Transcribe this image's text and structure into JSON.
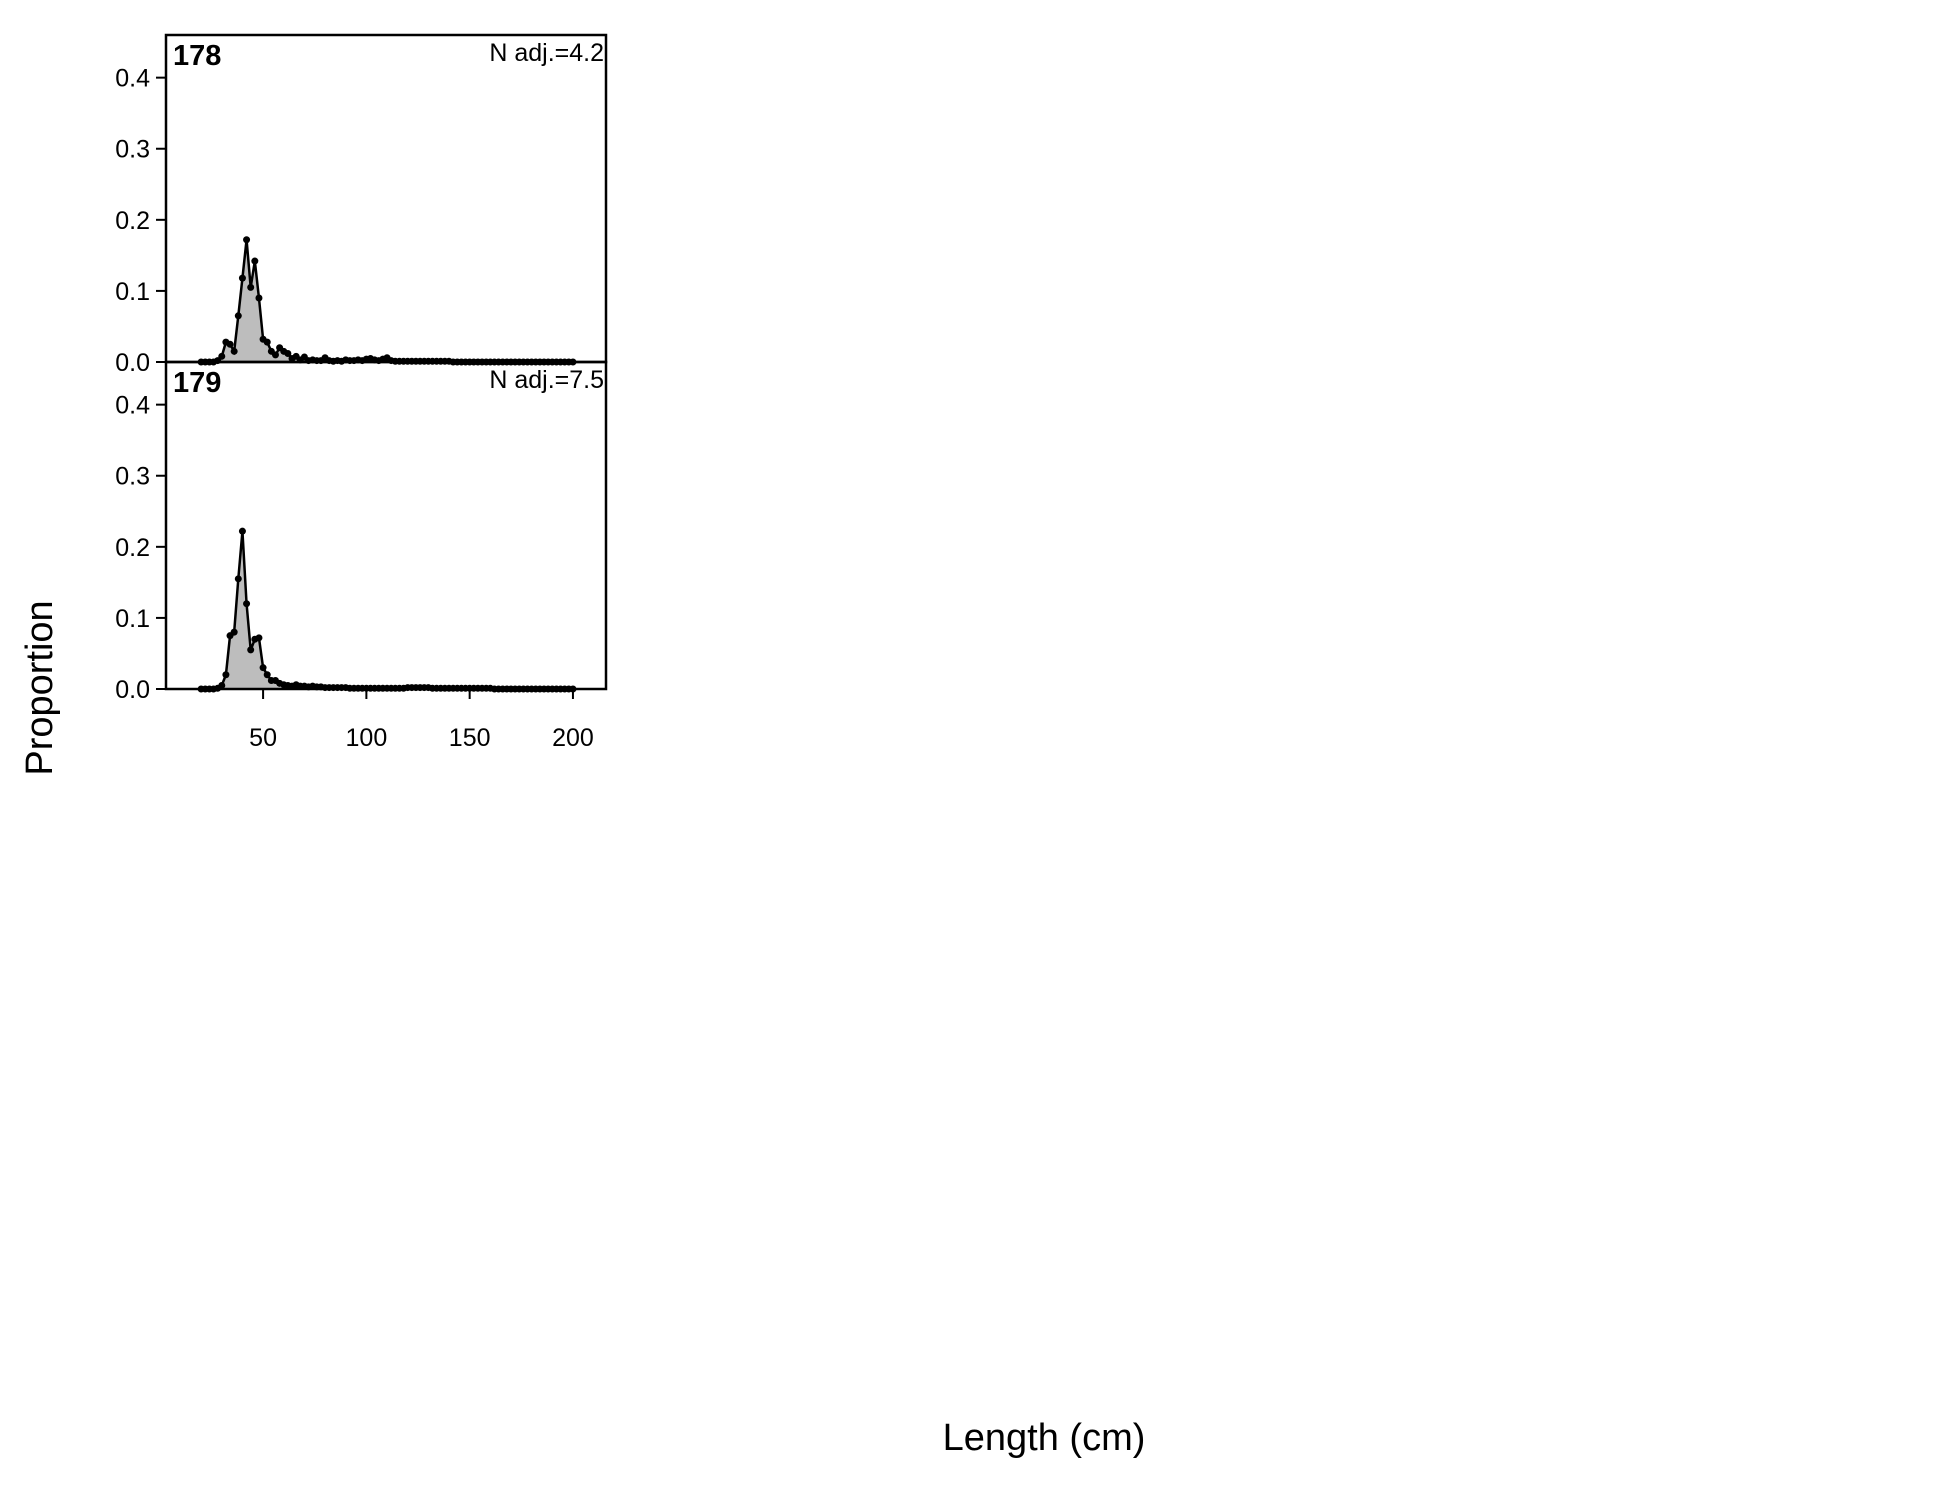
{
  "ylabel": "Proportion",
  "xlabel": "Length (cm)",
  "chart_data": [
    {
      "type": "area",
      "title": "178",
      "annotation": "N adj.=4.2",
      "color": "#bdbdbd",
      "x": [
        20,
        22,
        24,
        26,
        28,
        30,
        32,
        34,
        36,
        38,
        40,
        42,
        44,
        46,
        48,
        50,
        52,
        54,
        56,
        58,
        60,
        62,
        64,
        66,
        68,
        70,
        72,
        74,
        76,
        78,
        80,
        82,
        84,
        86,
        88,
        90,
        92,
        94,
        96,
        98,
        100,
        102,
        104,
        106,
        108,
        110,
        112,
        114,
        116,
        118,
        120,
        122,
        124,
        126,
        128,
        130,
        132,
        134,
        136,
        138,
        140,
        142,
        144,
        146,
        148,
        150,
        152,
        154,
        156,
        158,
        160,
        162,
        164,
        166,
        168,
        170,
        172,
        174,
        176,
        178,
        180,
        182,
        184,
        186,
        188,
        190,
        192,
        194,
        196,
        198,
        200
      ],
      "values": [
        0,
        0,
        0,
        0,
        0.002,
        0.008,
        0.028,
        0.025,
        0.015,
        0.065,
        0.118,
        0.172,
        0.105,
        0.142,
        0.09,
        0.032,
        0.028,
        0.015,
        0.01,
        0.02,
        0.015,
        0.012,
        0.005,
        0.008,
        0.003,
        0.007,
        0.002,
        0.003,
        0.002,
        0.002,
        0.006,
        0.002,
        0.001,
        0.002,
        0.001,
        0.003,
        0.002,
        0.002,
        0.003,
        0.002,
        0.004,
        0.005,
        0.003,
        0.002,
        0.004,
        0.006,
        0.002,
        0.001,
        0.001,
        0.001,
        0.001,
        0.001,
        0.001,
        0.001,
        0.001,
        0.001,
        0.001,
        0.001,
        0.001,
        0.001,
        0.001,
        0,
        0,
        0,
        0,
        0,
        0,
        0,
        0,
        0,
        0,
        0,
        0,
        0,
        0,
        0,
        0,
        0,
        0,
        0,
        0,
        0,
        0,
        0,
        0,
        0,
        0,
        0,
        0,
        0,
        0
      ],
      "xlim": [
        3,
        216
      ],
      "ylim": [
        0,
        0.46
      ],
      "yticks": [
        {
          "value": 0,
          "label": "0.0"
        },
        {
          "value": 0.1,
          "label": "0.1"
        },
        {
          "value": 0.2,
          "label": "0.2"
        },
        {
          "value": 0.3,
          "label": "0.3"
        },
        {
          "value": 0.4,
          "label": "0.4"
        }
      ]
    },
    {
      "type": "area",
      "title": "179",
      "annotation": "N adj.=7.5",
      "color": "#bdbdbd",
      "x": [
        20,
        22,
        24,
        26,
        28,
        30,
        32,
        34,
        36,
        38,
        40,
        42,
        44,
        46,
        48,
        50,
        52,
        54,
        56,
        58,
        60,
        62,
        64,
        66,
        68,
        70,
        72,
        74,
        76,
        78,
        80,
        82,
        84,
        86,
        88,
        90,
        92,
        94,
        96,
        98,
        100,
        102,
        104,
        106,
        108,
        110,
        112,
        114,
        116,
        118,
        120,
        122,
        124,
        126,
        128,
        130,
        132,
        134,
        136,
        138,
        140,
        142,
        144,
        146,
        148,
        150,
        152,
        154,
        156,
        158,
        160,
        162,
        164,
        166,
        168,
        170,
        172,
        174,
        176,
        178,
        180,
        182,
        184,
        186,
        188,
        190,
        192,
        194,
        196,
        198,
        200
      ],
      "values": [
        0,
        0,
        0,
        0,
        0.001,
        0.005,
        0.02,
        0.075,
        0.08,
        0.155,
        0.222,
        0.12,
        0.055,
        0.07,
        0.072,
        0.03,
        0.02,
        0.012,
        0.012,
        0.008,
        0.006,
        0.005,
        0.004,
        0.006,
        0.004,
        0.004,
        0.003,
        0.004,
        0.003,
        0.003,
        0.002,
        0.002,
        0.002,
        0.002,
        0.002,
        0.002,
        0.001,
        0.001,
        0.001,
        0.001,
        0.001,
        0.001,
        0.001,
        0.001,
        0.001,
        0.001,
        0.001,
        0.001,
        0.001,
        0.001,
        0.002,
        0.002,
        0.002,
        0.002,
        0.002,
        0.002,
        0.001,
        0.001,
        0.001,
        0.001,
        0.001,
        0.001,
        0.001,
        0.001,
        0.001,
        0.001,
        0.001,
        0.001,
        0.001,
        0.001,
        0.001,
        0,
        0,
        0,
        0,
        0,
        0,
        0,
        0,
        0,
        0,
        0,
        0,
        0,
        0,
        0,
        0,
        0,
        0,
        0,
        0
      ],
      "xlim": [
        3,
        216
      ],
      "ylim": [
        0,
        0.46
      ],
      "xticks": [
        50,
        100,
        150,
        200
      ],
      "yticks": [
        {
          "value": 0,
          "label": "0.0"
        },
        {
          "value": 0.1,
          "label": "0.1"
        },
        {
          "value": 0.2,
          "label": "0.2"
        },
        {
          "value": 0.3,
          "label": "0.3"
        },
        {
          "value": 0.4,
          "label": "0.4"
        }
      ]
    }
  ]
}
